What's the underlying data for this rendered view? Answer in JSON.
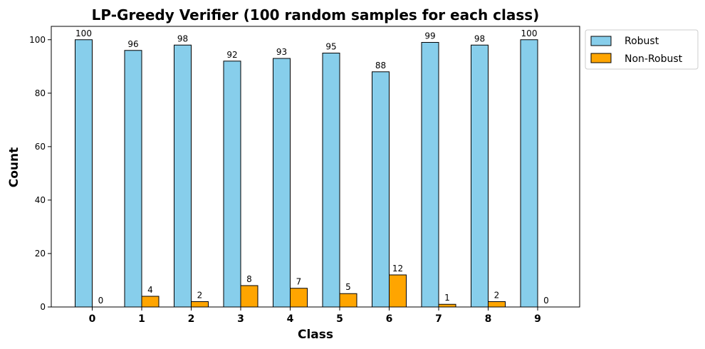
{
  "chart_data": {
    "type": "bar",
    "title": "LP-Greedy Verifier (100 random samples for each class)",
    "xlabel": "Class",
    "ylabel": "Count",
    "categories": [
      "0",
      "1",
      "2",
      "3",
      "4",
      "5",
      "6",
      "7",
      "8",
      "9"
    ],
    "series": [
      {
        "name": "Robust",
        "values": [
          100,
          96,
          98,
          92,
          93,
          95,
          88,
          99,
          98,
          100
        ],
        "color": "#87ceeb"
      },
      {
        "name": "Non-Robust",
        "values": [
          0,
          4,
          2,
          8,
          7,
          5,
          12,
          1,
          2,
          0
        ],
        "color": "#ffa500"
      }
    ],
    "ylim": [
      0,
      105
    ],
    "yticks": [
      0,
      20,
      40,
      60,
      80,
      100
    ],
    "grid": false,
    "legend_position": "outside-top-right",
    "data_labels": true
  }
}
